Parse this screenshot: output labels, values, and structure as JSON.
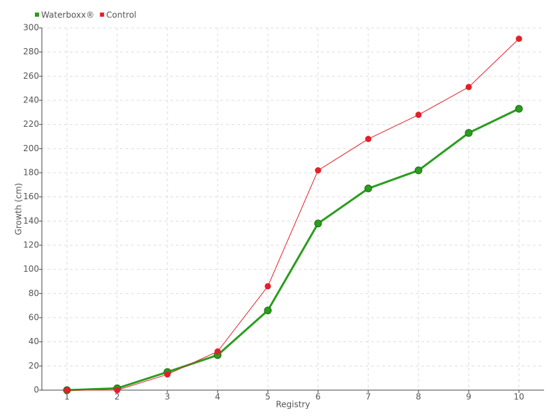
{
  "chart_data": {
    "type": "line",
    "categories": [
      "1",
      "2",
      "3",
      "4",
      "5",
      "6",
      "7",
      "8",
      "9",
      "10"
    ],
    "series": [
      {
        "name": "Waterboxx®",
        "color": "#2a9d1e",
        "values": [
          0,
          1.5,
          15,
          29,
          66,
          138,
          167,
          182,
          213,
          233
        ]
      },
      {
        "name": "Control",
        "color": "#e3202a",
        "values": [
          0,
          0,
          13,
          32,
          86,
          182,
          208,
          228,
          251,
          291
        ]
      }
    ],
    "xlabel": "Registry",
    "ylabel": "Growth (cm)",
    "ylim": [
      0,
      300
    ],
    "yticks": [
      0,
      20,
      40,
      60,
      80,
      100,
      120,
      140,
      160,
      180,
      200,
      220,
      240,
      260,
      280,
      300
    ],
    "grid": true,
    "legend": "top-left"
  }
}
